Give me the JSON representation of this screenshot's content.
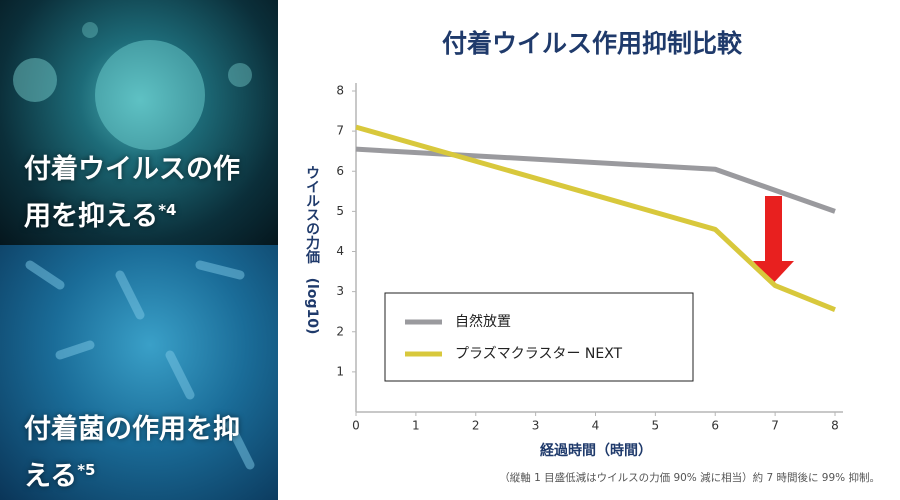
{
  "panels": [
    {
      "text": "付着ウイルスの作用を抑える",
      "mark": "*4"
    },
    {
      "text": "付着菌の作用を抑える",
      "mark": "*5"
    }
  ],
  "chart_data": {
    "type": "line",
    "title": "付着ウイルス作用抑制比較",
    "y_label": "ウイルスの力価　(log10)",
    "x_label": "経過時間（時間）",
    "note": "（縦軸 1 目盛低減はウイルスの力価 90% 減に相当）約 7 時間後に 99% 抑制。",
    "xlim": [
      0,
      8
    ],
    "xticks": [
      0,
      1,
      2,
      3,
      4,
      5,
      6,
      7,
      8
    ],
    "ylim": [
      0,
      8
    ],
    "yticks": [
      1,
      2,
      3,
      4,
      5,
      6,
      7,
      8
    ],
    "legend": "lower left",
    "series": [
      {
        "name": "自然放置",
        "color": "#9a9a9e",
        "x": [
          0,
          6,
          8
        ],
        "values": [
          6.55,
          6.05,
          5.0
        ]
      },
      {
        "name": "プラズマクラスター NEXT",
        "color": "#d8c83c",
        "x": [
          0,
          6,
          7,
          8
        ],
        "values": [
          7.1,
          4.55,
          3.15,
          2.55
        ]
      }
    ]
  }
}
